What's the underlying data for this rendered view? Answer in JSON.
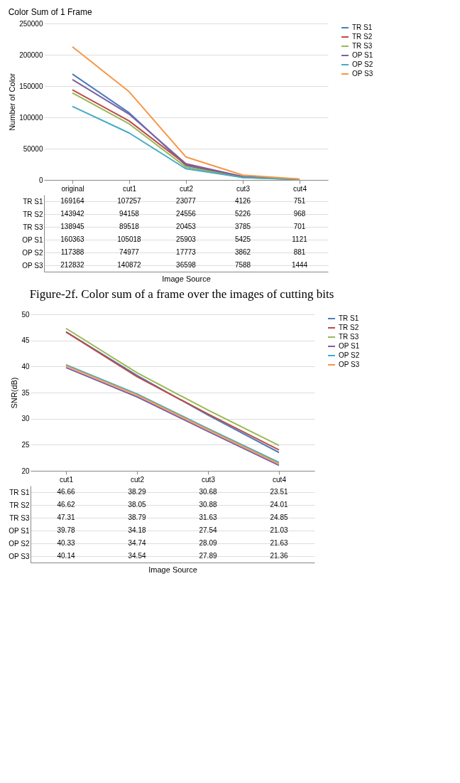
{
  "chart_data": [
    {
      "type": "line",
      "title": "Color Sum of 1 Frame",
      "xlabel": "Image Source",
      "ylabel": "Number of Color",
      "categories": [
        "original",
        "cut1",
        "cut2",
        "cut3",
        "cut4"
      ],
      "ylim": [
        0,
        250000
      ],
      "yticks": [
        0,
        50000,
        100000,
        150000,
        200000,
        250000
      ],
      "grid": "y",
      "legend": "right",
      "data_labels": true,
      "series": [
        {
          "name": "TR S1",
          "color": "#4a7ebb",
          "values": [
            169164,
            107257,
            23077,
            4126,
            751
          ]
        },
        {
          "name": "TR S2",
          "color": "#be4b48",
          "values": [
            143942,
            94158,
            24556,
            5226,
            968
          ]
        },
        {
          "name": "TR S3",
          "color": "#98b954",
          "values": [
            138945,
            89518,
            20453,
            3785,
            701
          ]
        },
        {
          "name": "OP S1",
          "color": "#7d60a0",
          "values": [
            160363,
            105018,
            25903,
            5425,
            1121
          ]
        },
        {
          "name": "OP S2",
          "color": "#46aac5",
          "values": [
            117388,
            74977,
            17773,
            3862,
            881
          ]
        },
        {
          "name": "OP S3",
          "color": "#f79646",
          "values": [
            212832,
            140872,
            36598,
            7588,
            1444
          ]
        }
      ],
      "annotations": [
        "Figure-2f. Color sum of a frame over the images of cutting bits"
      ]
    },
    {
      "type": "line",
      "xlabel": "Image Source",
      "ylabel": "SNR(dB)",
      "categories": [
        "cut1",
        "cut2",
        "cut3",
        "cut4"
      ],
      "ylim": [
        20,
        50
      ],
      "yticks": [
        20,
        25,
        30,
        35,
        40,
        45,
        50
      ],
      "grid": "y",
      "legend": "right",
      "data_labels": true,
      "series": [
        {
          "name": "TR S1",
          "color": "#4a7ebb",
          "values": [
            46.66,
            38.29,
            30.68,
            23.51
          ]
        },
        {
          "name": "TR S2",
          "color": "#be4b48",
          "values": [
            46.62,
            38.05,
            30.88,
            24.01
          ]
        },
        {
          "name": "TR S3",
          "color": "#98b954",
          "values": [
            47.31,
            38.79,
            31.63,
            24.85
          ]
        },
        {
          "name": "OP S1",
          "color": "#7d60a0",
          "values": [
            39.78,
            34.18,
            27.54,
            21.03
          ]
        },
        {
          "name": "OP S2",
          "color": "#46aac5",
          "values": [
            40.33,
            34.74,
            28.09,
            21.63
          ]
        },
        {
          "name": "OP S3",
          "color": "#f79646",
          "values": [
            40.14,
            34.54,
            27.89,
            21.36
          ]
        }
      ]
    }
  ]
}
